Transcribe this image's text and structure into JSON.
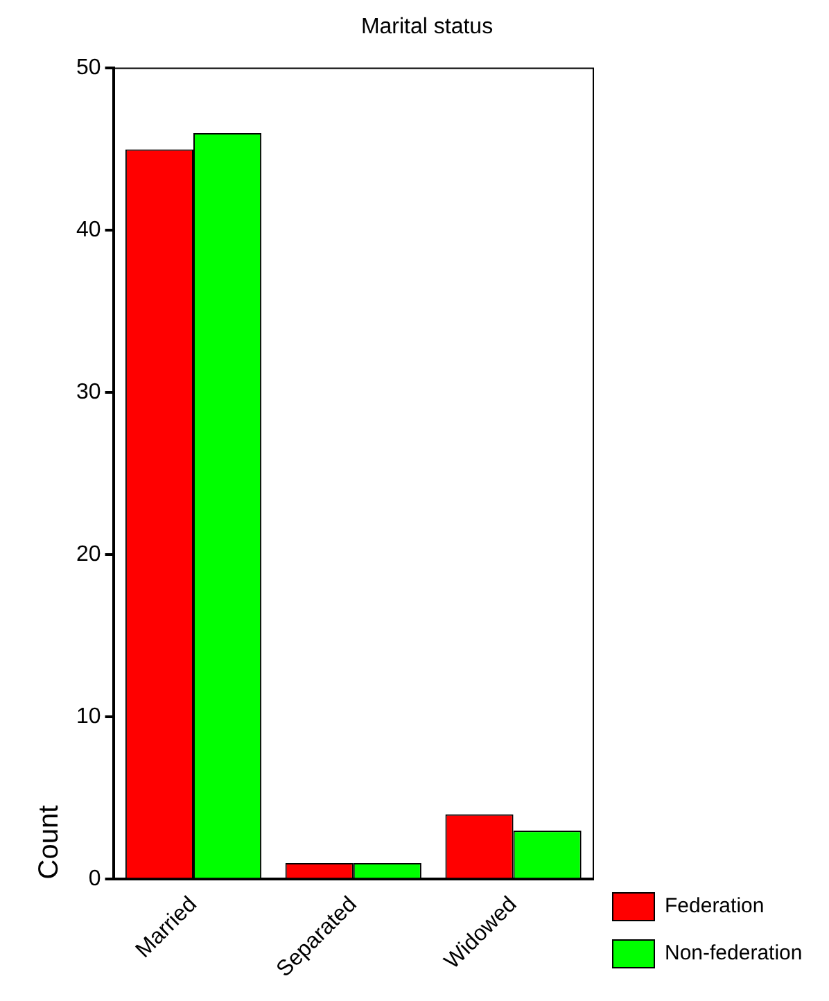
{
  "chart_data": {
    "type": "bar",
    "title": "Marital status",
    "ylabel": "Count",
    "categories": [
      "Married",
      "Separated",
      "Widowed"
    ],
    "series": [
      {
        "name": "Federation",
        "color": "#ff0000",
        "values": [
          45,
          1,
          4
        ]
      },
      {
        "name": "Non-federation",
        "color": "#00ff00",
        "values": [
          46,
          1,
          3
        ]
      }
    ],
    "ylim": [
      0,
      50
    ],
    "yticks": [
      0,
      10,
      20,
      30,
      40,
      50
    ],
    "grid": false,
    "legend": "bottom right"
  }
}
